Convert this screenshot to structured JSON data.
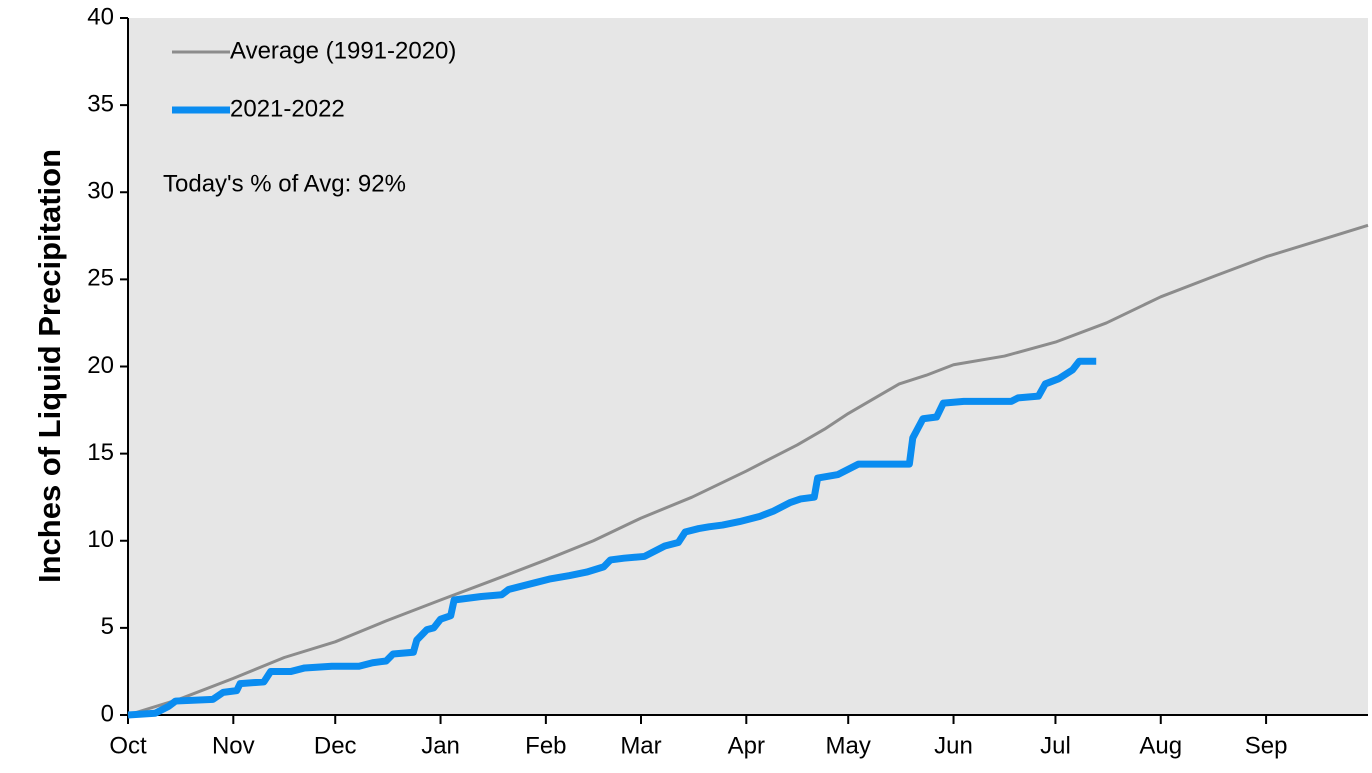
{
  "chart_data": {
    "type": "line",
    "ylabel": "Inches of Liquid Precipitation",
    "annotation": "Today's % of Avg: 92%",
    "xlim": [
      0,
      365
    ],
    "xticks": [
      {
        "value": 0,
        "label": "Oct"
      },
      {
        "value": 31,
        "label": "Nov"
      },
      {
        "value": 61,
        "label": "Dec"
      },
      {
        "value": 92,
        "label": "Jan"
      },
      {
        "value": 123,
        "label": "Feb"
      },
      {
        "value": 151,
        "label": "Mar"
      },
      {
        "value": 182,
        "label": "Apr"
      },
      {
        "value": 212,
        "label": "May"
      },
      {
        "value": 243,
        "label": "Jun"
      },
      {
        "value": 273,
        "label": "Jul"
      },
      {
        "value": 304,
        "label": "Aug"
      },
      {
        "value": 335,
        "label": "Sep"
      }
    ],
    "ylim": [
      0,
      40
    ],
    "yticks": [
      0,
      5,
      10,
      15,
      20,
      25,
      30,
      35,
      40
    ],
    "legend": "upper left",
    "series": [
      {
        "name": "Average (1991-2020)",
        "color": "#8c8c8c",
        "width": 3,
        "x": [
          0,
          15,
          31,
          46,
          61,
          76,
          92,
          107,
          123,
          137,
          151,
          166,
          182,
          197,
          205,
          212,
          227,
          235,
          243,
          258,
          273,
          288,
          304,
          320,
          335,
          350,
          365
        ],
        "values": [
          0,
          0.9,
          2.1,
          3.3,
          4.2,
          5.4,
          6.6,
          7.7,
          8.9,
          10.0,
          11.3,
          12.5,
          14.0,
          15.5,
          16.4,
          17.3,
          19.0,
          19.5,
          20.1,
          20.6,
          21.4,
          22.5,
          24.0,
          25.2,
          26.3,
          27.2,
          28.1
        ]
      },
      {
        "name": "2021-2022",
        "color": "#0a8cf0",
        "width": 7,
        "x": [
          0,
          8,
          12,
          14,
          25,
          28,
          32,
          33,
          40,
          42,
          48,
          52,
          60,
          68,
          72,
          76,
          78,
          84,
          85,
          88,
          90,
          92,
          95,
          96,
          104,
          110,
          112,
          120,
          124,
          130,
          135,
          140,
          142,
          146,
          152,
          158,
          162,
          164,
          168,
          171,
          175,
          180,
          186,
          190,
          195,
          198,
          202,
          203,
          209,
          215,
          230,
          231,
          234,
          238,
          240,
          246,
          260,
          262,
          268,
          270,
          274,
          278,
          280,
          285
        ],
        "values": [
          0,
          0.1,
          0.5,
          0.8,
          0.9,
          1.3,
          1.4,
          1.8,
          1.9,
          2.5,
          2.5,
          2.7,
          2.8,
          2.8,
          3.0,
          3.1,
          3.5,
          3.6,
          4.3,
          4.9,
          5.0,
          5.5,
          5.7,
          6.6,
          6.8,
          6.9,
          7.2,
          7.6,
          7.8,
          8.0,
          8.2,
          8.5,
          8.9,
          9.0,
          9.1,
          9.7,
          9.9,
          10.5,
          10.7,
          10.8,
          10.9,
          11.1,
          11.4,
          11.7,
          12.2,
          12.4,
          12.5,
          13.6,
          13.8,
          14.4,
          14.4,
          15.9,
          17.0,
          17.1,
          17.9,
          18.0,
          18.0,
          18.2,
          18.3,
          19.0,
          19.3,
          19.8,
          20.3,
          20.3
        ]
      }
    ]
  }
}
